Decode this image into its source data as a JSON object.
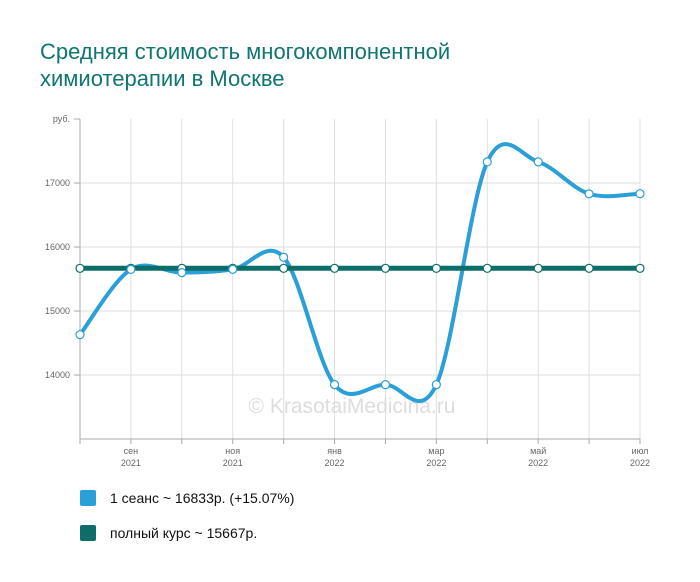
{
  "title_lines": [
    "Средняя стоимость многокомпонентной",
    "химиотерапии в Москве"
  ],
  "watermark": "© KrasotaiMedicina.ru",
  "chart_data": {
    "type": "line",
    "y_unit": "руб.",
    "ylim": [
      13000,
      18000
    ],
    "y_ticks": [
      14000,
      15000,
      16000,
      17000
    ],
    "x_tick_labels": [
      {
        "top": "сен",
        "bottom": "2021"
      },
      {
        "top": "ноя",
        "bottom": "2021"
      },
      {
        "top": "янв",
        "bottom": "2022"
      },
      {
        "top": "мар",
        "bottom": "2022"
      },
      {
        "top": "май",
        "bottom": "2022"
      },
      {
        "top": "июл",
        "bottom": "2022"
      }
    ],
    "categories": [
      "2021-08",
      "2021-09",
      "2021-10",
      "2021-11",
      "2021-12",
      "2022-01",
      "2022-02",
      "2022-03",
      "2022-04",
      "2022-05",
      "2022-06",
      "2022-07"
    ],
    "grid": true,
    "legend_position": "bottom",
    "series": [
      {
        "name": "1 сеанс ~ 16833р. (+15.07%)",
        "color": "#2a9fd8",
        "values": [
          14630,
          15650,
          15600,
          15650,
          15840,
          13850,
          13850,
          13850,
          17330,
          17330,
          16830,
          16833
        ]
      },
      {
        "name": "полный курс ~ 15667р.",
        "color": "#0c6d69",
        "values": [
          15667,
          15667,
          15667,
          15667,
          15667,
          15667,
          15667,
          15667,
          15667,
          15667,
          15667,
          15667
        ]
      }
    ]
  }
}
